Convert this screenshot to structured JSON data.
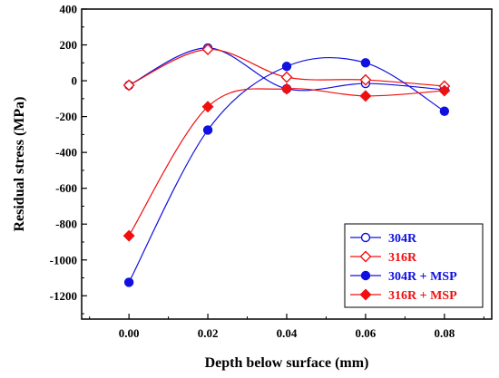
{
  "chart_data": {
    "type": "line",
    "xlabel": "Depth below surface (mm)",
    "ylabel": "Residual stress (MPa)",
    "x": [
      0.0,
      0.02,
      0.04,
      0.06,
      0.08
    ],
    "x_tick_labels": [
      "0.00",
      "0.02",
      "0.04",
      "0.06",
      "0.08"
    ],
    "xlim": [
      -0.012,
      0.092
    ],
    "ylim": [
      -1330,
      400
    ],
    "y_ticks": [
      400,
      200,
      0,
      -200,
      -400,
      -600,
      -800,
      -1000,
      -1200
    ],
    "y_tick_labels": [
      "400",
      "200",
      "0",
      "-200",
      "-400",
      "-600",
      "-800",
      "-1000",
      "-1200"
    ],
    "grid": false,
    "legend_position": "bottom-right",
    "series": [
      {
        "name": "304R",
        "values": [
          -25,
          183,
          -45,
          -15,
          -50
        ],
        "color": "#1010e0",
        "marker": "circle-open"
      },
      {
        "name": "316R",
        "values": [
          -25,
          175,
          20,
          5,
          -30
        ],
        "color": "#f01010",
        "marker": "diamond-open"
      },
      {
        "name": "304R + MSP",
        "values": [
          -1125,
          -275,
          80,
          100,
          -170
        ],
        "color": "#1010e0",
        "marker": "circle-filled"
      },
      {
        "name": "316R + MSP",
        "values": [
          -865,
          -145,
          -45,
          -85,
          -55
        ],
        "color": "#f01010",
        "marker": "diamond-filled"
      }
    ]
  }
}
